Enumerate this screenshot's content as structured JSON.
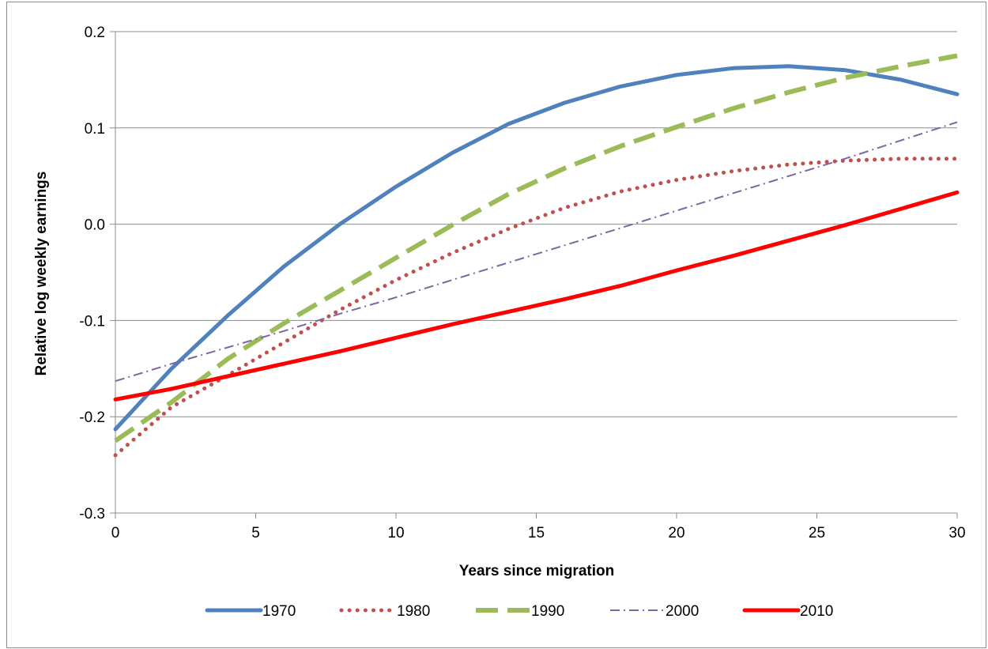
{
  "chart_data": {
    "type": "line",
    "title": "",
    "xlabel": "Years since migration",
    "ylabel": "Relative log weekly earnings",
    "xlim": [
      0,
      30
    ],
    "ylim": [
      -0.3,
      0.2
    ],
    "x_ticks": [
      "0",
      "5",
      "10",
      "15",
      "20",
      "25",
      "30"
    ],
    "y_ticks": [
      "-0.3",
      "-0.2",
      "-0.1",
      "0.0",
      "0.1",
      "0.2"
    ],
    "grid": "horizontal",
    "legend_position": "bottom",
    "x": [
      0,
      2,
      4,
      6,
      8,
      10,
      12,
      14,
      16,
      18,
      20,
      22,
      24,
      26,
      28,
      30
    ],
    "series": [
      {
        "name": "1970",
        "color": "#4f81bd",
        "style": "solid",
        "values": [
          -0.213,
          -0.15,
          -0.095,
          -0.044,
          0.0,
          0.039,
          0.074,
          0.104,
          0.126,
          0.143,
          0.155,
          0.162,
          0.164,
          0.16,
          0.15,
          0.135
        ]
      },
      {
        "name": "1980",
        "color": "#c0504d",
        "style": "dotted",
        "values": [
          -0.24,
          -0.19,
          -0.157,
          -0.123,
          -0.089,
          -0.058,
          -0.03,
          -0.005,
          0.017,
          0.034,
          0.046,
          0.055,
          0.062,
          0.066,
          0.068,
          0.068
        ]
      },
      {
        "name": "1990",
        "color": "#9bbb59",
        "style": "dashed",
        "values": [
          -0.225,
          -0.185,
          -0.14,
          -0.103,
          -0.069,
          -0.035,
          -0.001,
          0.031,
          0.058,
          0.081,
          0.101,
          0.12,
          0.137,
          0.152,
          0.164,
          0.175
        ]
      },
      {
        "name": "2000",
        "color": "#8064a2",
        "style": "dash-dot",
        "values": [
          -0.163,
          -0.145,
          -0.128,
          -0.111,
          -0.093,
          -0.076,
          -0.058,
          -0.04,
          -0.022,
          -0.004,
          0.014,
          0.032,
          0.05,
          0.068,
          0.087,
          0.106
        ]
      },
      {
        "name": "2010",
        "color": "#ff0000",
        "style": "solid",
        "values": [
          -0.182,
          -0.171,
          -0.158,
          -0.145,
          -0.132,
          -0.118,
          -0.104,
          -0.091,
          -0.078,
          -0.064,
          -0.048,
          -0.033,
          -0.017,
          -0.001,
          0.016,
          0.033
        ]
      }
    ]
  }
}
